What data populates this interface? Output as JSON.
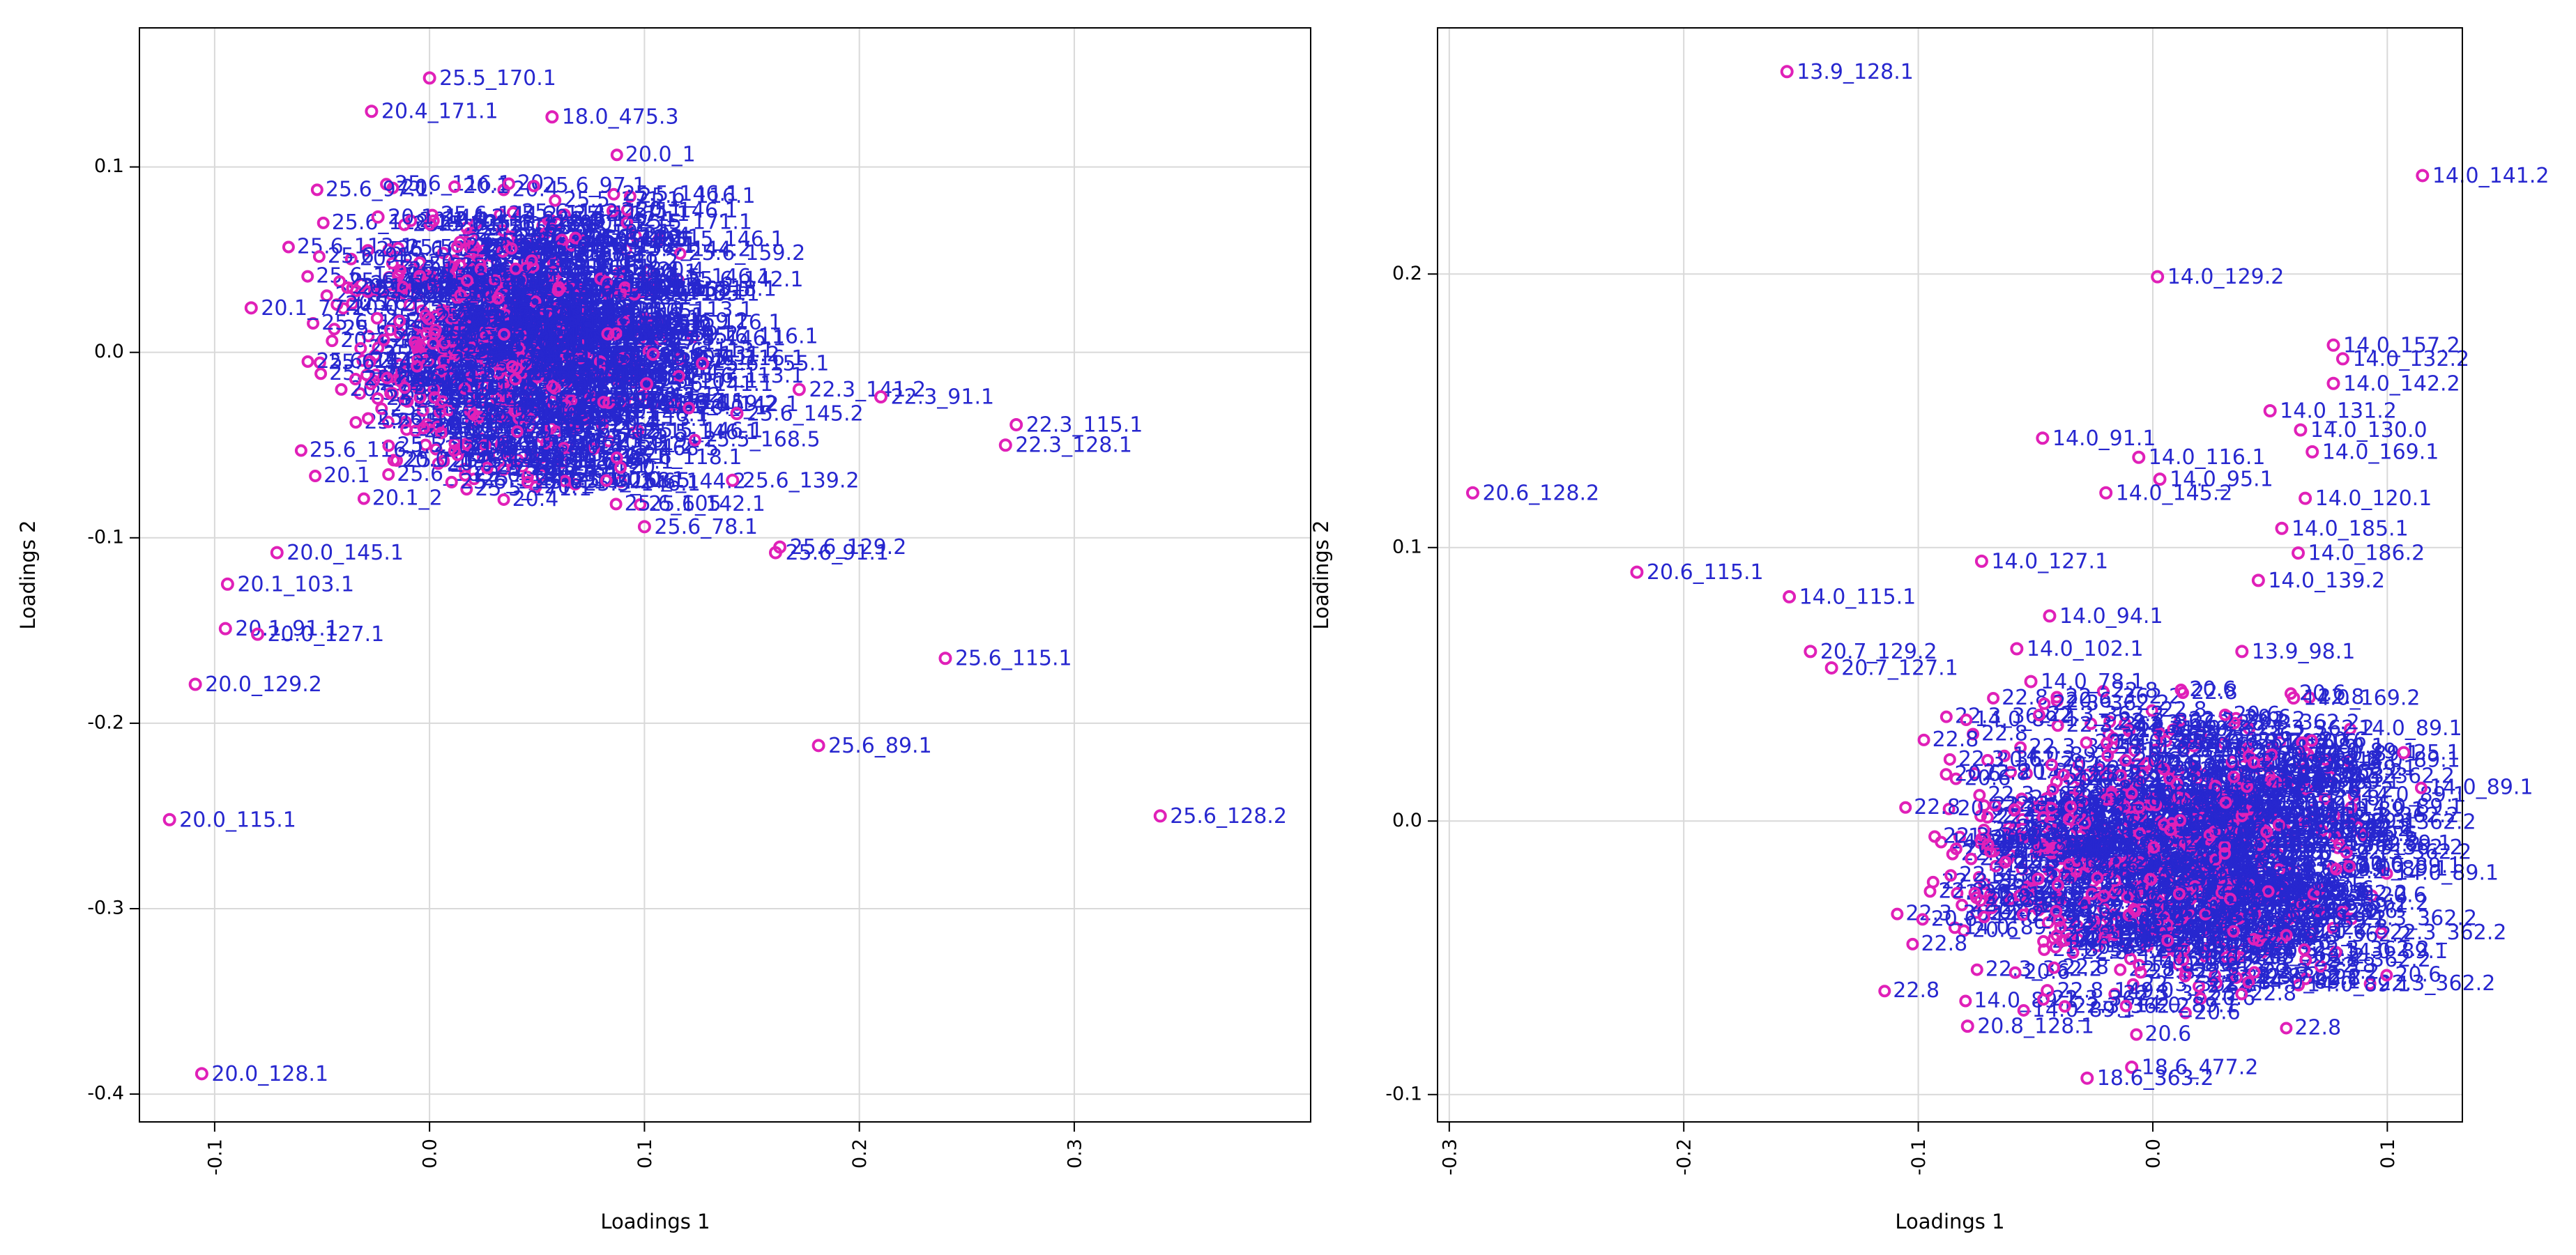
{
  "colors": {
    "point": "#e020b8",
    "label": "#2727cf",
    "grid": "#d9d9d9"
  },
  "chart_data": [
    {
      "type": "scatter",
      "title": "",
      "xlabel": "Loadings 1",
      "ylabel": "Loadings 2",
      "xlim": [
        -0.135,
        0.41
      ],
      "ylim": [
        -0.415,
        0.175
      ],
      "xticks": [
        -0.1,
        0.0,
        0.1,
        0.2,
        0.3
      ],
      "xtick_labels": [
        "-0.1",
        "0.0",
        "0.1",
        "0.2",
        "0.3"
      ],
      "yticks": [
        -0.4,
        -0.3,
        -0.2,
        -0.1,
        0.0,
        0.1
      ],
      "ytick_labels": [
        "-0.4",
        "-0.3",
        "-0.2",
        "-0.1",
        "0.0",
        "0.1"
      ],
      "grid": true,
      "labeled_points": [
        {
          "label": "25.5_170.1",
          "x": 0.0,
          "y": 0.148
        },
        {
          "label": "20.4_171.1",
          "x": -0.027,
          "y": 0.13
        },
        {
          "label": "18.0_475.3",
          "x": 0.057,
          "y": 0.127
        },
        {
          "label": "20.1_144.2",
          "x": -0.024,
          "y": 0.073
        },
        {
          "label": "20.1_77.1",
          "x": -0.083,
          "y": 0.024
        },
        {
          "label": "25.6_140.1",
          "x": 0.083,
          "y": 0.01
        },
        {
          "label": "25.6_131.2",
          "x": 0.104,
          "y": -0.001
        },
        {
          "label": "25.6_155.1",
          "x": 0.127,
          "y": -0.006
        },
        {
          "label": "25.6_141.1",
          "x": 0.101,
          "y": -0.017
        },
        {
          "label": "22.3_141.2",
          "x": 0.172,
          "y": -0.02
        },
        {
          "label": "22.3_91.1",
          "x": 0.21,
          "y": -0.024
        },
        {
          "label": "25.6_145.2",
          "x": 0.143,
          "y": -0.033
        },
        {
          "label": "22.3_115.1",
          "x": 0.273,
          "y": -0.039
        },
        {
          "label": "22.3_128.1",
          "x": 0.268,
          "y": -0.05
        },
        {
          "label": "25.6_139.2",
          "x": 0.141,
          "y": -0.069
        },
        {
          "label": "25.6_78.1",
          "x": 0.1,
          "y": -0.094
        },
        {
          "label": "25.6_129.2",
          "x": 0.163,
          "y": -0.105
        },
        {
          "label": "25.6_91.1",
          "x": 0.161,
          "y": -0.108
        },
        {
          "label": "20.0_145.1",
          "x": -0.071,
          "y": -0.108
        },
        {
          "label": "20.1_103.1",
          "x": -0.094,
          "y": -0.125
        },
        {
          "label": "20.1_91.1",
          "x": -0.095,
          "y": -0.149
        },
        {
          "label": "20.0_127.1",
          "x": -0.08,
          "y": -0.152
        },
        {
          "label": "20.0_129.2",
          "x": -0.109,
          "y": -0.179
        },
        {
          "label": "25.6_115.1",
          "x": 0.24,
          "y": -0.165
        },
        {
          "label": "25.6_89.1",
          "x": 0.181,
          "y": -0.212
        },
        {
          "label": "20.0_115.1",
          "x": -0.121,
          "y": -0.252
        },
        {
          "label": "25.6_128.2",
          "x": 0.34,
          "y": -0.25
        },
        {
          "label": "20.0_128.1",
          "x": -0.106,
          "y": -0.389
        }
      ],
      "cluster_label_fragments": [
        "20.0_1",
        "20.1",
        "20.",
        "20.4",
        "25.6_113.1",
        "25.6_105.1",
        "25.6_116.1",
        "25.6_91",
        "25.6_97.1",
        "25.6_144.2",
        "25.6_142.1",
        "25.6_159.2",
        "25.6_118.1",
        "25.6_105",
        "20.1_2",
        "25.5_171.1",
        "25.5_146.1",
        "25.5_168.5"
      ],
      "cluster": {
        "n": 560,
        "x": [
          -0.075,
          0.14
        ],
        "y": [
          -0.11,
          0.12
        ],
        "center": [
          0.015,
          -0.02
        ]
      }
    },
    {
      "type": "scatter",
      "title": "",
      "xlabel": "Loadings 1",
      "ylabel": "Loadings 2",
      "xlim": [
        -0.305,
        0.132
      ],
      "ylim": [
        -0.11,
        0.29
      ],
      "xticks": [
        -0.3,
        -0.2,
        -0.1,
        0.0,
        0.1
      ],
      "xtick_labels": [
        "-0.3",
        "-0.2",
        "-0.1",
        "0.0",
        "0.1"
      ],
      "yticks": [
        -0.1,
        0.0,
        0.1,
        0.2
      ],
      "ytick_labels": [
        "-0.1",
        "0.0",
        "0.1",
        "0.2"
      ],
      "grid": true,
      "labeled_points": [
        {
          "label": "13.9_128.1",
          "x": -0.156,
          "y": 0.274
        },
        {
          "label": "14.0_141.2",
          "x": 0.115,
          "y": 0.236
        },
        {
          "label": "14.0_129.2",
          "x": 0.002,
          "y": 0.199
        },
        {
          "label": "14.0_157.2",
          "x": 0.077,
          "y": 0.174
        },
        {
          "label": "14.0_132.2",
          "x": 0.081,
          "y": 0.169
        },
        {
          "label": "14.0_142.2",
          "x": 0.077,
          "y": 0.16
        },
        {
          "label": "14.0_131.2",
          "x": 0.05,
          "y": 0.15
        },
        {
          "label": "14.0_130.0",
          "x": 0.063,
          "y": 0.143
        },
        {
          "label": "14.0_169.1",
          "x": 0.068,
          "y": 0.135
        },
        {
          "label": "14.0_91.1",
          "x": -0.047,
          "y": 0.14
        },
        {
          "label": "14.0_116.1",
          "x": -0.006,
          "y": 0.133
        },
        {
          "label": "14.0_95.1",
          "x": 0.003,
          "y": 0.125
        },
        {
          "label": "14.0_145.2",
          "x": -0.02,
          "y": 0.12
        },
        {
          "label": "14.0_120.1",
          "x": 0.065,
          "y": 0.118
        },
        {
          "label": "14.0_185.1",
          "x": 0.055,
          "y": 0.107
        },
        {
          "label": "14.0_186.2",
          "x": 0.062,
          "y": 0.098
        },
        {
          "label": "14.0_127.1",
          "x": -0.073,
          "y": 0.095
        },
        {
          "label": "14.0_139.2",
          "x": 0.045,
          "y": 0.088
        },
        {
          "label": "14.0_94.1",
          "x": -0.044,
          "y": 0.075
        },
        {
          "label": "13.9_98.1",
          "x": 0.038,
          "y": 0.062
        },
        {
          "label": "14.0_102.1",
          "x": -0.058,
          "y": 0.063
        },
        {
          "label": "14.0_78.1",
          "x": -0.052,
          "y": 0.051
        },
        {
          "label": "14.0_169.2",
          "x": 0.06,
          "y": 0.045
        },
        {
          "label": "20.6_128.2",
          "x": -0.29,
          "y": 0.12
        },
        {
          "label": "20.6_115.1",
          "x": -0.22,
          "y": 0.091
        },
        {
          "label": "14.0_115.1",
          "x": -0.155,
          "y": 0.082
        },
        {
          "label": "20.7_129.2",
          "x": -0.146,
          "y": 0.062
        },
        {
          "label": "20.7_127.1",
          "x": -0.137,
          "y": 0.056
        },
        {
          "label": "22.8_149.0",
          "x": -0.045,
          "y": -0.062
        },
        {
          "label": "20.8_128.1",
          "x": -0.079,
          "y": -0.075
        },
        {
          "label": "18.6_477.2",
          "x": -0.009,
          "y": -0.09
        },
        {
          "label": "18.6_363.2",
          "x": -0.028,
          "y": -0.094
        },
        {
          "label": "25.1",
          "x": 0.107,
          "y": 0.025
        }
      ],
      "cluster_label_fragments": [
        "14.0_89.1",
        "20.6",
        "22.8",
        "22.3_362.2"
      ],
      "cluster": {
        "n": 640,
        "x": [
          -0.13,
          0.13
        ],
        "y": [
          -0.085,
          0.06
        ],
        "center": [
          0.0,
          0.0
        ]
      }
    }
  ]
}
